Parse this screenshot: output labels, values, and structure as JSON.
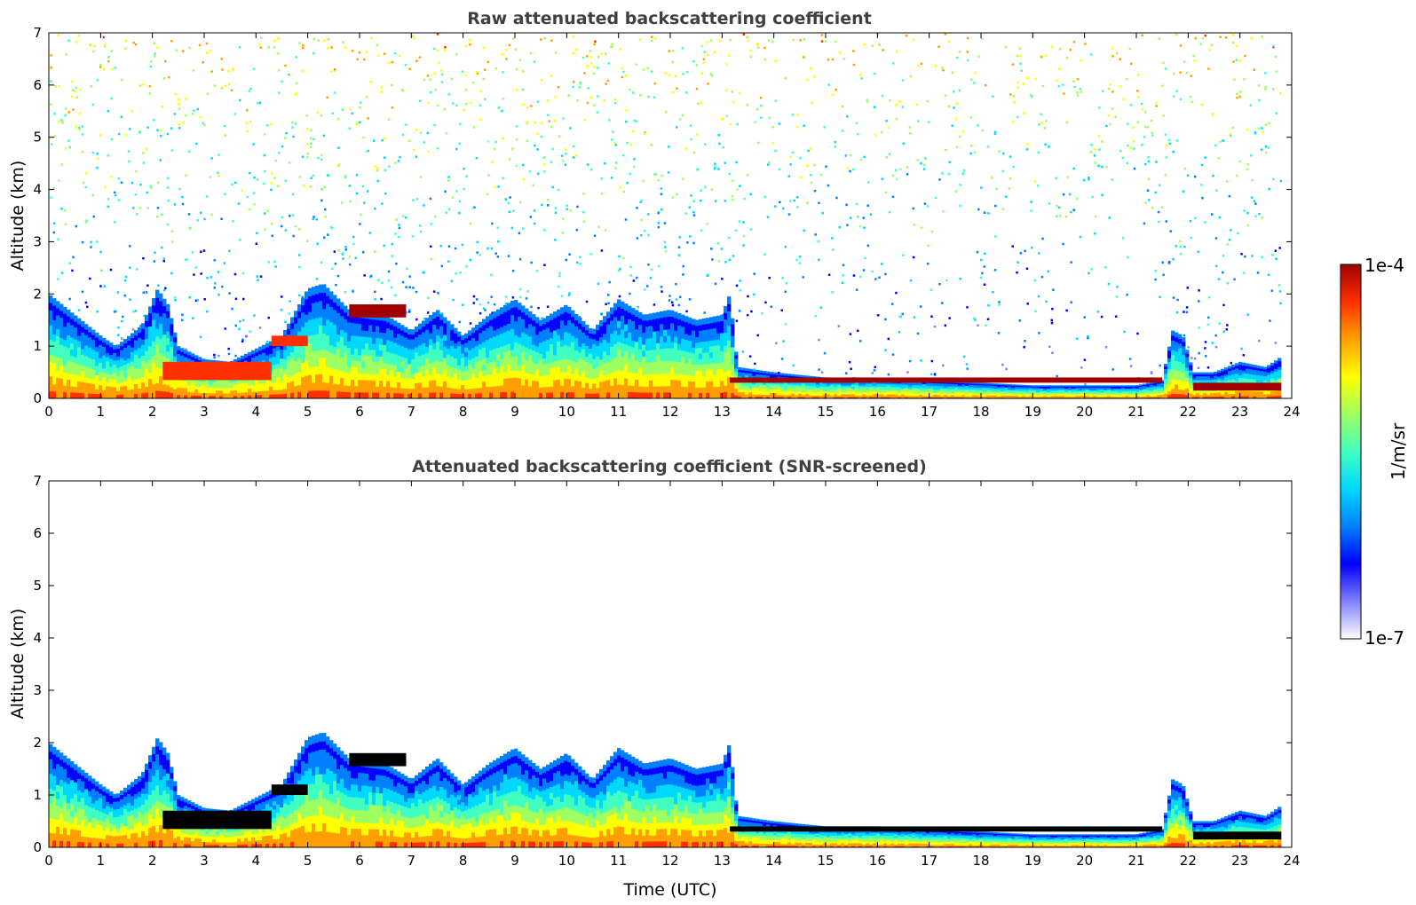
{
  "colormap": [
    "#ffffff",
    "#8080ff",
    "#0000ff",
    "#0080ff",
    "#00d8ff",
    "#40ffc0",
    "#a0ff60",
    "#ffff00",
    "#ffa000",
    "#ff3000",
    "#a00000"
  ],
  "colorbar": {
    "max_label": "1e-4",
    "min_label": "1e-7",
    "unit_label": "1/m/sr",
    "vmin": 1e-07,
    "vmax": 0.0001,
    "scale": "log"
  },
  "chart_data": [
    {
      "type": "heatmap",
      "title": "Raw attenuated backscattering coefficient",
      "xlabel": "",
      "ylabel": "Altitude (km)",
      "xlim": [
        0,
        24
      ],
      "ylim": [
        0,
        7
      ],
      "x_ticks": [
        "0",
        "1",
        "2",
        "3",
        "4",
        "5",
        "6",
        "7",
        "8",
        "9",
        "10",
        "11",
        "12",
        "13",
        "14",
        "15",
        "16",
        "17",
        "18",
        "19",
        "20",
        "21",
        "22",
        "23",
        "24"
      ],
      "y_ticks": [
        "0",
        "1",
        "2",
        "3",
        "4",
        "5",
        "6",
        "7"
      ],
      "screened": false,
      "profile_top_km": {
        "time_utc": [
          0,
          0.5,
          1,
          1.3,
          1.8,
          2.1,
          2.3,
          2.5,
          3,
          3.5,
          4,
          4.5,
          5,
          5.3,
          5.8,
          6.5,
          7,
          7.5,
          8,
          8.5,
          9,
          9.5,
          10,
          10.5,
          11,
          11.5,
          12,
          12.5,
          13,
          13.15,
          13.3,
          14,
          15,
          16,
          17,
          18,
          19,
          20,
          21,
          21.5,
          21.7,
          21.9,
          22.1,
          22.5,
          23,
          23.5,
          23.8
        ],
        "altitude_km": [
          2.0,
          1.6,
          1.2,
          1.0,
          1.4,
          2.1,
          1.8,
          1.0,
          0.75,
          0.7,
          0.95,
          1.2,
          2.1,
          2.2,
          1.7,
          1.6,
          1.3,
          1.7,
          1.2,
          1.6,
          1.9,
          1.5,
          1.8,
          1.3,
          1.9,
          1.6,
          1.7,
          1.5,
          1.6,
          2.0,
          0.6,
          0.5,
          0.4,
          0.4,
          0.35,
          0.3,
          0.25,
          0.25,
          0.25,
          0.35,
          1.3,
          1.2,
          0.5,
          0.5,
          0.7,
          0.6,
          0.8
        ]
      },
      "cloud_layers": [
        {
          "start_utc": 2.2,
          "end_utc": 4.3,
          "top_km": 0.7,
          "bottom_km": 0.35,
          "level": 0.92
        },
        {
          "start_utc": 4.3,
          "end_utc": 5.0,
          "top_km": 1.2,
          "bottom_km": 1.0,
          "level": 0.9
        },
        {
          "start_utc": 5.8,
          "end_utc": 6.9,
          "top_km": 1.8,
          "bottom_km": 1.55,
          "level": 0.97
        },
        {
          "start_utc": 13.15,
          "end_utc": 21.5,
          "top_km": 0.4,
          "bottom_km": 0.3,
          "level": 0.97
        },
        {
          "start_utc": 22.1,
          "end_utc": 23.8,
          "top_km": 0.3,
          "bottom_km": 0.15,
          "level": 0.95
        }
      ]
    },
    {
      "type": "heatmap",
      "title": "Attenuated backscattering coefficient (SNR-screened)",
      "xlabel": "Time (UTC)",
      "ylabel": "Altitude (km)",
      "xlim": [
        0,
        24
      ],
      "ylim": [
        0,
        7
      ],
      "x_ticks": [
        "0",
        "1",
        "2",
        "3",
        "4",
        "5",
        "6",
        "7",
        "8",
        "9",
        "10",
        "11",
        "12",
        "13",
        "14",
        "15",
        "16",
        "17",
        "18",
        "19",
        "20",
        "21",
        "22",
        "23",
        "24"
      ],
      "y_ticks": [
        "0",
        "1",
        "2",
        "3",
        "4",
        "5",
        "6",
        "7"
      ],
      "screened": true,
      "profile_top_km": {
        "time_utc": [
          0,
          0.5,
          1,
          1.3,
          1.8,
          2.1,
          2.3,
          2.5,
          3,
          3.5,
          4,
          4.5,
          5,
          5.3,
          5.8,
          6.5,
          7,
          7.5,
          8,
          8.5,
          9,
          9.5,
          10,
          10.5,
          11,
          11.5,
          12,
          12.5,
          13,
          13.15,
          13.3,
          14,
          15,
          16,
          17,
          18,
          19,
          20,
          21,
          21.5,
          21.7,
          21.9,
          22.1,
          22.5,
          23,
          23.5,
          23.8
        ],
        "altitude_km": [
          2.0,
          1.6,
          1.2,
          1.0,
          1.4,
          2.1,
          1.8,
          1.0,
          0.75,
          0.7,
          0.95,
          1.2,
          2.1,
          2.2,
          1.7,
          1.6,
          1.3,
          1.7,
          1.2,
          1.6,
          1.9,
          1.5,
          1.8,
          1.3,
          1.9,
          1.6,
          1.7,
          1.5,
          1.6,
          2.0,
          0.6,
          0.5,
          0.4,
          0.4,
          0.35,
          0.3,
          0.25,
          0.25,
          0.25,
          0.35,
          1.3,
          1.2,
          0.5,
          0.5,
          0.7,
          0.6,
          0.8
        ]
      },
      "cloud_layers": [
        {
          "start_utc": 2.2,
          "end_utc": 4.3,
          "top_km": 0.7,
          "bottom_km": 0.35,
          "level": 1.0
        },
        {
          "start_utc": 4.3,
          "end_utc": 5.0,
          "top_km": 1.2,
          "bottom_km": 1.0,
          "level": 1.0
        },
        {
          "start_utc": 5.8,
          "end_utc": 6.9,
          "top_km": 1.8,
          "bottom_km": 1.55,
          "level": 1.0
        },
        {
          "start_utc": 13.15,
          "end_utc": 21.5,
          "top_km": 0.4,
          "bottom_km": 0.3,
          "level": 1.0
        },
        {
          "start_utc": 22.1,
          "end_utc": 23.8,
          "top_km": 0.3,
          "bottom_km": 0.15,
          "level": 1.0
        }
      ]
    }
  ]
}
